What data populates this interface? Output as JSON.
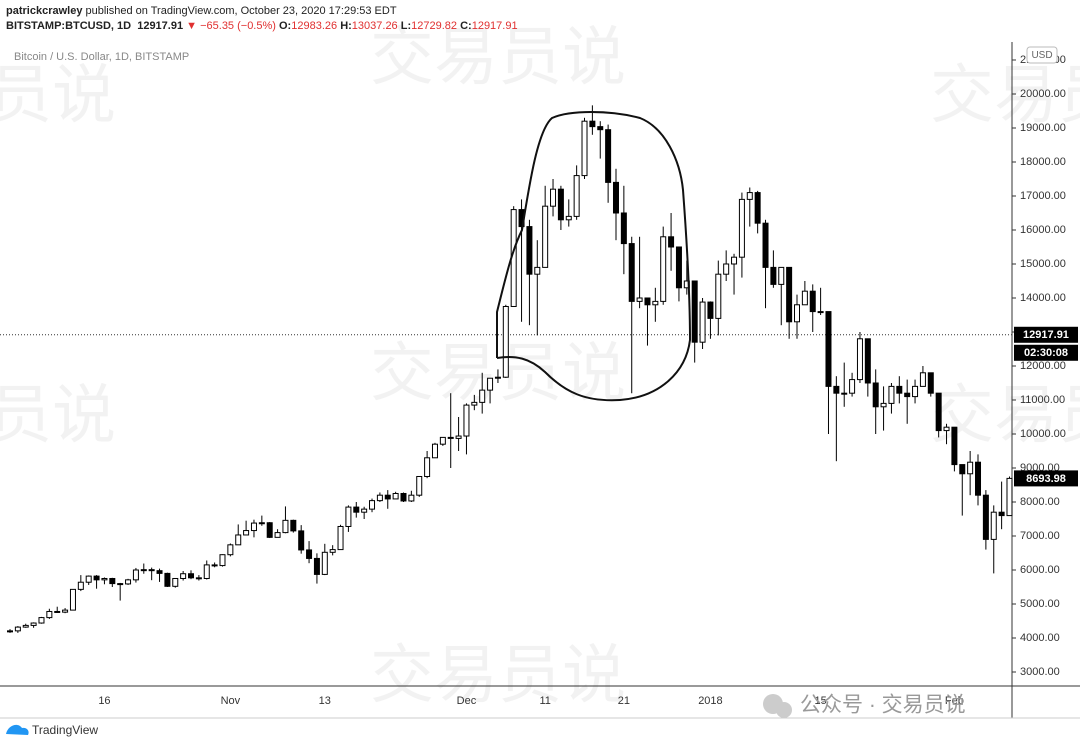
{
  "header": {
    "publisher": "patrickcrawley",
    "published": "published on TradingView.com, October 23, 2020 17:29:53 EDT",
    "symbol": "BITSTAMP:BTCUSD, 1D",
    "change": "▼ −65.35 (−0.5%)",
    "open_label": "O:",
    "open": 12983.26,
    "high_label": "H:",
    "high": 13037.26,
    "low_label": "L:",
    "low": 12729.82,
    "close_label": "C:",
    "close": 12917.91
  },
  "chart_data": {
    "type": "candlestick",
    "title": "Bitcoin / U.S. Dollar, 1D, BITSTAMP",
    "currency": "USD",
    "categories": [
      null,
      null,
      null,
      null,
      null,
      null,
      null,
      null,
      null,
      null,
      null,
      null,
      "16",
      null,
      null,
      null,
      null,
      null,
      null,
      null,
      null,
      null,
      null,
      null,
      null,
      null,
      null,
      null,
      "Nov",
      null,
      null,
      null,
      null,
      null,
      null,
      null,
      null,
      null,
      null,
      null,
      "13",
      null,
      null,
      null,
      null,
      null,
      null,
      null,
      null,
      null,
      null,
      null,
      null,
      null,
      null,
      null,
      null,
      null,
      "Dec",
      null,
      null,
      null,
      null,
      null,
      null,
      null,
      null,
      null,
      "11",
      null,
      null,
      null,
      null,
      null,
      null,
      null,
      null,
      null,
      "21",
      null,
      null,
      null,
      null,
      null,
      null,
      null,
      null,
      null,
      null,
      "2018",
      null,
      null,
      null,
      null,
      null,
      null,
      null,
      null,
      null,
      null,
      null,
      null,
      null,
      "15",
      null,
      null,
      null,
      null,
      null,
      null,
      null,
      null,
      null,
      null,
      null,
      null,
      null,
      null,
      null,
      null,
      "Feb",
      null,
      null,
      null,
      null,
      null,
      null,
      null
    ],
    "open": [
      4200,
      4210,
      4320,
      4370,
      4440,
      4600,
      4780,
      4760,
      4820,
      5430,
      5640,
      5820,
      5710,
      5750,
      5600,
      5590,
      5710,
      6000,
      6010,
      5980,
      5900,
      5520,
      5750,
      5890,
      5770,
      5750,
      6150,
      6130,
      6450,
      6740,
      7030,
      7160,
      7380,
      7390,
      6960,
      7100,
      7460,
      7150,
      6590,
      6340,
      5870,
      6520,
      6600,
      7280,
      7850,
      7700,
      7790,
      8040,
      8200,
      8090,
      8250,
      8030,
      8200,
      8750,
      9300,
      9700,
      9900,
      9870,
      9940,
      10850,
      10930,
      11290,
      11640,
      11670,
      13750,
      16600,
      16100,
      14700,
      14900,
      16700,
      17200,
      16300,
      16400,
      17600,
      19200,
      19040,
      18950,
      17400,
      16500,
      15600,
      13900,
      14000,
      13800,
      13900,
      15800,
      15500,
      14300,
      14500,
      12700,
      13880,
      13400,
      14700,
      15000,
      15200,
      16900,
      17100,
      16200,
      14900,
      14400,
      14900,
      13300,
      13800,
      14200,
      13600,
      13600,
      11400,
      11200,
      11200,
      11600,
      12800,
      11500,
      10800,
      10900,
      11400,
      11200,
      11100,
      11400,
      11800,
      11200,
      10100,
      10200,
      9100,
      8830,
      9170,
      8200,
      6900,
      7700,
      7600
    ],
    "high": [
      4260,
      4350,
      4420,
      4460,
      4620,
      4860,
      4920,
      4880,
      5440,
      5850,
      5840,
      5850,
      5780,
      5770,
      5620,
      5740,
      6060,
      6190,
      6070,
      6040,
      5920,
      5750,
      5970,
      5990,
      5850,
      6280,
      6220,
      6460,
      6780,
      7340,
      7450,
      7480,
      7600,
      7410,
      7200,
      7870,
      7480,
      7320,
      6850,
      6490,
      6770,
      6730,
      7330,
      7900,
      8000,
      7860,
      8100,
      8280,
      8350,
      8300,
      8280,
      8330,
      8760,
      9500,
      9740,
      9900,
      11200,
      10500,
      10900,
      11150,
      11800,
      11600,
      11900,
      13800,
      16700,
      16900,
      16300,
      15700,
      17300,
      17500,
      17300,
      16900,
      17900,
      19300,
      19666,
      19200,
      19100,
      17800,
      17300,
      15800,
      15800,
      14000,
      14300,
      16100,
      16500,
      15500,
      15100,
      14500,
      14000,
      13900,
      15100,
      15400,
      15300,
      17100,
      17250,
      17150,
      16300,
      15400,
      14900,
      14900,
      14100,
      14500,
      14400,
      14300,
      13600,
      11700,
      12100,
      11800,
      13000,
      12800,
      11900,
      11400,
      11500,
      11700,
      11600,
      11600,
      12000,
      11800,
      11200,
      10300,
      10200,
      9100,
      9500,
      9400,
      8350,
      7900,
      8600,
      8750
    ],
    "low": [
      4150,
      4150,
      4300,
      4300,
      4420,
      4560,
      4740,
      4730,
      4820,
      5380,
      5560,
      5450,
      5580,
      5500,
      5100,
      5560,
      5630,
      5890,
      5700,
      5650,
      5500,
      5480,
      5690,
      5730,
      5690,
      5720,
      6080,
      6100,
      6400,
      6740,
      7030,
      6960,
      7300,
      6940,
      6960,
      7080,
      7100,
      6480,
      6200,
      5600,
      5850,
      6430,
      6600,
      7120,
      7540,
      7500,
      7700,
      8000,
      7800,
      8090,
      8000,
      8000,
      8150,
      8700,
      9300,
      9650,
      9000,
      9500,
      9400,
      10700,
      10600,
      10900,
      11500,
      11650,
      13750,
      13300,
      13200,
      12900,
      14900,
      16400,
      16000,
      16100,
      16300,
      17500,
      18800,
      18100,
      16800,
      15700,
      14700,
      11200,
      13700,
      12600,
      13300,
      13800,
      14800,
      13900,
      14100,
      12100,
      12500,
      12800,
      12900,
      14500,
      14100,
      14600,
      16100,
      15900,
      13700,
      14300,
      13200,
      12800,
      12800,
      13800,
      13000,
      13500,
      10000,
      9200,
      10800,
      11100,
      11500,
      11100,
      10000,
      10100,
      10600,
      10900,
      10300,
      10900,
      11400,
      11100,
      9900,
      9700,
      8900,
      7600,
      8200,
      7900,
      6600,
      5900,
      7200,
      7600
    ],
    "close": [
      4210,
      4320,
      4370,
      4440,
      4600,
      4780,
      4760,
      4820,
      5430,
      5640,
      5820,
      5710,
      5750,
      5600,
      5590,
      5710,
      6000,
      6010,
      5980,
      5900,
      5520,
      5750,
      5890,
      5770,
      5750,
      6150,
      6130,
      6450,
      6740,
      7030,
      7160,
      7380,
      7390,
      6960,
      7100,
      7460,
      7150,
      6590,
      6340,
      5870,
      6520,
      6600,
      7280,
      7850,
      7700,
      7790,
      8040,
      8200,
      8090,
      8250,
      8030,
      8200,
      8750,
      9300,
      9700,
      9900,
      9870,
      9940,
      10850,
      10930,
      11290,
      11640,
      11670,
      13750,
      16600,
      16100,
      14700,
      14900,
      16700,
      17200,
      16300,
      16400,
      17600,
      19200,
      19040,
      18950,
      17400,
      16500,
      15600,
      13900,
      14000,
      13800,
      13900,
      15800,
      15500,
      14300,
      14500,
      12700,
      13880,
      13400,
      14700,
      15000,
      15200,
      16900,
      17100,
      16200,
      14900,
      14400,
      14900,
      13300,
      13800,
      14200,
      13600,
      13600,
      11400,
      11200,
      11200,
      11600,
      12800,
      11500,
      10800,
      10900,
      11400,
      11200,
      11100,
      11400,
      11800,
      11200,
      10100,
      10200,
      9100,
      8830,
      9170,
      8200,
      6900,
      7700,
      7600,
      8693.98
    ],
    "up_color": "#ffffff",
    "down_color": "#000000",
    "ylim": [
      2588,
      21529
    ],
    "yticks": [
      {
        "value": 3000,
        "label": "3000.00"
      },
      {
        "value": 4000,
        "label": "4000.00"
      },
      {
        "value": 5000,
        "label": "5000.00"
      },
      {
        "value": 6000,
        "label": "6000.00"
      },
      {
        "value": 7000,
        "label": "7000.00"
      },
      {
        "value": 8000,
        "label": "8000.00"
      },
      {
        "value": 9000,
        "label": "9000.00"
      },
      {
        "value": 10000,
        "label": "10000.00"
      },
      {
        "value": 11000,
        "label": "11000.00"
      },
      {
        "value": 12000,
        "label": "12000.00"
      },
      {
        "value": 13000,
        "label": "13000.00"
      },
      {
        "value": 14000,
        "label": "14000.00"
      },
      {
        "value": 15000,
        "label": "15000.00"
      },
      {
        "value": 16000,
        "label": "16000.00"
      },
      {
        "value": 17000,
        "label": "17000.00"
      },
      {
        "value": 18000,
        "label": "18000.00"
      },
      {
        "value": 19000,
        "label": "19000.00"
      },
      {
        "value": 20000,
        "label": "20000.00"
      },
      {
        "value": 21000,
        "label": "21000.00"
      }
    ],
    "current_price": 12917.91,
    "countdown": "02:30:08",
    "grid": false
  },
  "watermark": "交易员说",
  "wechat": "公众号 · 交易员说",
  "footer": "TradingView"
}
